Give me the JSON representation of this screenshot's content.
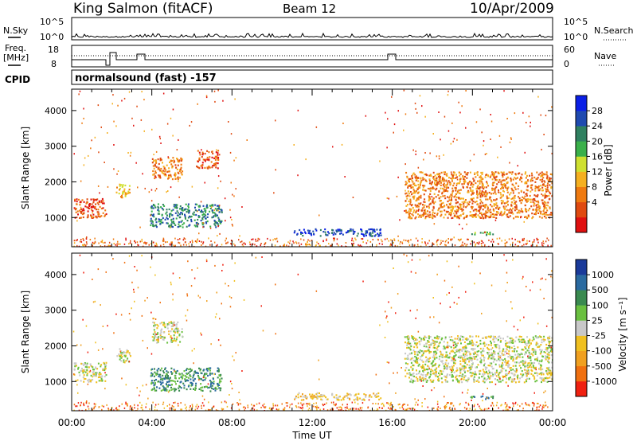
{
  "header": {
    "station": "King Salmon (fitACF)",
    "beam": "Beam 12",
    "date": "10/Apr/2009"
  },
  "status_panels": {
    "nsky_label": "N.Sky",
    "nsearch_label": "N.Search",
    "freq_label_1": "Freq.",
    "freq_label_2": "[MHz]",
    "nave_label": "Nave",
    "cpid_label": "CPID",
    "cpid_value": "normalsound (fast) -157",
    "nsky_ticks": [
      "10^5",
      "10^0"
    ],
    "nsearch_ticks": [
      "10^5",
      "10^0"
    ],
    "freq_ticks": [
      "18",
      "8"
    ],
    "nave_ticks": [
      "60",
      "0"
    ]
  },
  "colors": {
    "power_scale": [
      "#0a1fe6",
      "#1f4ab0",
      "#2f8060",
      "#3ab04a",
      "#cfe030",
      "#f5b020",
      "#ef7a10",
      "#e04a10",
      "#e01010"
    ],
    "velocity_scale": [
      "#1a3a9a",
      "#2a6aa0",
      "#3a8a50",
      "#6ac040",
      "#c8c8c8",
      "#f0c020",
      "#f0a020",
      "#f07010",
      "#f02010"
    ]
  },
  "chart_data": [
    {
      "type": "heatmap",
      "name": "power",
      "xlabel": "",
      "ylabel": "Slant Range [km]",
      "xlim": [
        0,
        24
      ],
      "ylim": [
        180,
        4600
      ],
      "yticks": [
        "1000",
        "2000",
        "3000",
        "4000"
      ],
      "colorbar_label": "Power [dB]",
      "colorbar_ticks": [
        "4",
        "8",
        "12",
        "16",
        "20",
        "24",
        "28"
      ],
      "regions": [
        {
          "t0": 0.1,
          "t1": 1.7,
          "r0": 1000,
          "r1": 1550,
          "level": 1
        },
        {
          "t0": 2.2,
          "t1": 2.9,
          "r0": 1550,
          "r1": 1950,
          "level": 3
        },
        {
          "t0": 3.9,
          "t1": 7.5,
          "r0": 750,
          "r1": 1400,
          "level": 6
        },
        {
          "t0": 4.0,
          "t1": 5.5,
          "r0": 2100,
          "r1": 2700,
          "level": 2
        },
        {
          "t0": 6.2,
          "t1": 7.3,
          "r0": 2400,
          "r1": 2900,
          "level": 1
        },
        {
          "t0": 11.0,
          "t1": 15.5,
          "r0": 500,
          "r1": 700,
          "level": 7
        },
        {
          "t0": 16.6,
          "t1": 24.0,
          "r0": 1000,
          "r1": 2300,
          "level": 2
        },
        {
          "t0": 19.8,
          "t1": 21.0,
          "r0": 530,
          "r1": 620,
          "level": 5
        }
      ]
    },
    {
      "type": "heatmap",
      "name": "velocity",
      "xlabel": "Time UT",
      "ylabel": "Slant Range [km]",
      "xlim": [
        0,
        24
      ],
      "ylim": [
        180,
        4600
      ],
      "xticks": [
        "00:00",
        "04:00",
        "08:00",
        "12:00",
        "16:00",
        "20:00",
        "00:00"
      ],
      "yticks": [
        "1000",
        "2000",
        "3000",
        "4000"
      ],
      "colorbar_label": "Velocity [m s⁻¹]",
      "colorbar_ticks": [
        "1000",
        "500",
        "100",
        "25",
        "-25",
        "-100",
        "-500",
        "-1000"
      ],
      "regions": [
        {
          "t0": 0.1,
          "t1": 1.7,
          "r0": 1000,
          "r1": 1550,
          "level": 4
        },
        {
          "t0": 2.2,
          "t1": 2.9,
          "r0": 1550,
          "r1": 1950,
          "level": 4
        },
        {
          "t0": 3.9,
          "t1": 7.5,
          "r0": 750,
          "r1": 1400,
          "level": 6
        },
        {
          "t0": 4.0,
          "t1": 5.5,
          "r0": 2100,
          "r1": 2700,
          "level": 4
        },
        {
          "t0": 11.0,
          "t1": 15.5,
          "r0": 500,
          "r1": 700,
          "level": 3
        },
        {
          "t0": 16.6,
          "t1": 24.0,
          "r0": 1000,
          "r1": 2300,
          "level": 4
        },
        {
          "t0": 19.8,
          "t1": 21.0,
          "r0": 530,
          "r1": 620,
          "level": 6
        }
      ]
    }
  ]
}
